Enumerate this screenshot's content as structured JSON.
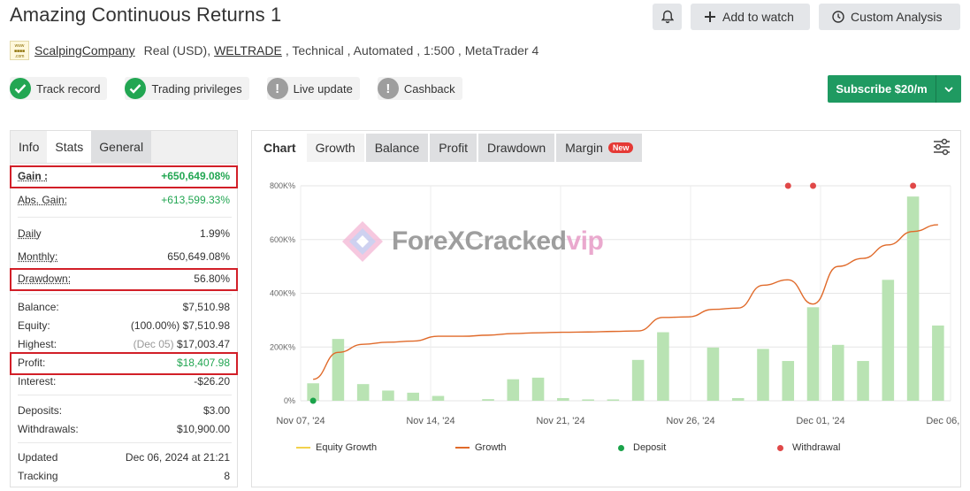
{
  "header": {
    "title": "Amazing Continuous Returns 1",
    "notify_icon": "bell-icon",
    "add_to_watch": "Add to watch",
    "custom_analysis": "Custom Analysis"
  },
  "meta": {
    "author": "ScalpingCompany",
    "account": "Real (USD),",
    "broker": "WELTRADE",
    "details": ", Technical , Automated , 1:500 , MetaTrader 4"
  },
  "badges": [
    {
      "label": "Track record",
      "status": "ok"
    },
    {
      "label": "Trading privileges",
      "status": "ok"
    },
    {
      "label": "Live update",
      "status": "na"
    },
    {
      "label": "Cashback",
      "status": "na"
    }
  ],
  "subscribe": {
    "label": "Subscribe $20/m"
  },
  "info_tabs": [
    "Info",
    "Stats",
    "General"
  ],
  "stats": {
    "gain": {
      "label": "Gain :",
      "value": "+650,649.08%"
    },
    "abs_gain": {
      "label": "Abs. Gain:",
      "value": "+613,599.33%"
    },
    "daily": {
      "label": "Daily",
      "value": "1.99%"
    },
    "monthly": {
      "label": "Monthly:",
      "value": "650,649.08%"
    },
    "drawdown": {
      "label": "Drawdown:",
      "value": "56.80%"
    },
    "balance": {
      "label": "Balance:",
      "value": "$7,510.98"
    },
    "equity": {
      "label": "Equity:",
      "value": "(100.00%) $7,510.98"
    },
    "highest": {
      "label": "Highest:",
      "date": "(Dec 05)",
      "value": "$17,003.47"
    },
    "profit": {
      "label": "Profit:",
      "value": "$18,407.98"
    },
    "interest": {
      "label": "Interest:",
      "value": "-$26.20"
    },
    "deposits": {
      "label": "Deposits:",
      "value": "$3.00"
    },
    "withdrawals": {
      "label": "Withdrawals:",
      "value": "$10,900.00"
    },
    "updated": {
      "label": "Updated",
      "value": "Dec 06, 2024 at 21:21"
    },
    "tracking": {
      "label": "Tracking",
      "value": "8"
    }
  },
  "chart_tabs": {
    "title": "Chart",
    "tabs": [
      "Growth",
      "Balance",
      "Profit",
      "Drawdown",
      "Margin"
    ],
    "new_tag": "New"
  },
  "watermark": {
    "text": "ForeXCracked",
    "accent": "vip"
  },
  "chart_data": {
    "type": "bar",
    "ylabels": [
      "800K%",
      "600K%",
      "400K%",
      "200K%",
      "0%"
    ],
    "ylim": [
      0,
      800000
    ],
    "xlabels": [
      "Nov 07, '24",
      "Nov 14, '24",
      "Nov 21, '24",
      "Nov 26, '24",
      "Dec 01, '24",
      "Dec 06, '24"
    ],
    "bars": [
      65000,
      230000,
      62000,
      38000,
      30000,
      18000,
      0,
      6000,
      80000,
      86000,
      10000,
      5000,
      5000,
      152000,
      255000,
      0,
      198000,
      10000,
      193000,
      148000,
      348000,
      208000,
      148000,
      450000,
      760000,
      280000
    ],
    "growth_line": [
      80000,
      180000,
      210000,
      218000,
      222000,
      240000,
      240000,
      244000,
      250000,
      253000,
      255000,
      256000,
      258000,
      260000,
      310000,
      312000,
      340000,
      345000,
      430000,
      450000,
      360000,
      500000,
      530000,
      580000,
      630000,
      655000
    ],
    "deposit_index": [
      0
    ],
    "withdrawal_index": [
      19,
      20,
      24
    ],
    "legend": [
      {
        "label": "Equity Growth",
        "color": "#f2d14c"
      },
      {
        "label": "Growth",
        "color": "#e06a2a"
      },
      {
        "label": "Deposit",
        "color": "#1aa34a"
      },
      {
        "label": "Withdrawal",
        "color": "#e04848"
      }
    ]
  }
}
